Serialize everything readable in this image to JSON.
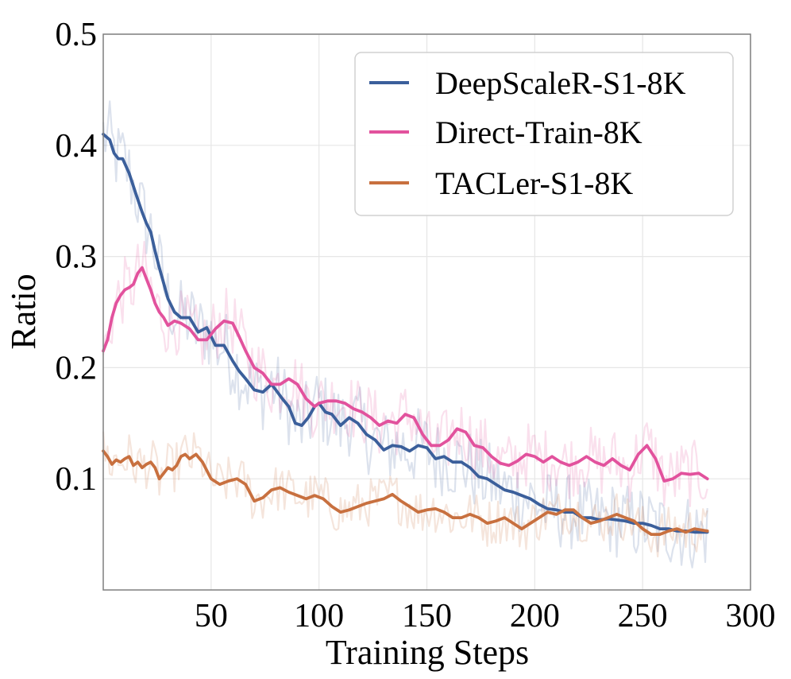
{
  "chart_data": {
    "type": "line",
    "title": "",
    "xlabel": "Training Steps",
    "ylabel": "Ratio",
    "xlim": [
      0,
      300
    ],
    "ylim": [
      0.0,
      0.5
    ],
    "xticks": [
      50,
      100,
      150,
      200,
      250,
      300
    ],
    "xtick_labels": [
      "50",
      "100",
      "150",
      "200",
      "250",
      "300"
    ],
    "yticks": [
      0.1,
      0.2,
      0.3,
      0.4,
      0.5
    ],
    "ytick_labels": [
      "0.1",
      "0.2",
      "0.3",
      "0.4",
      "0.5"
    ],
    "grid": true,
    "legend_position": "top-right",
    "series": [
      {
        "name": "DeepScaleR-S1-8K",
        "color": "#3b5f9b",
        "x": [
          0,
          3,
          5,
          7,
          9,
          12,
          15,
          18,
          20,
          22,
          24,
          26,
          28,
          30,
          33,
          36,
          40,
          44,
          48,
          52,
          56,
          60,
          63,
          66,
          70,
          74,
          78,
          80,
          83,
          86,
          89,
          92,
          95,
          98,
          100,
          103,
          106,
          110,
          114,
          118,
          122,
          126,
          130,
          134,
          138,
          142,
          146,
          150,
          154,
          158,
          162,
          166,
          170,
          174,
          178,
          182,
          186,
          190,
          194,
          198,
          202,
          206,
          210,
          214,
          218,
          222,
          226,
          230,
          234,
          238,
          242,
          246,
          250,
          254,
          258,
          262,
          266,
          270,
          274,
          278,
          280
        ],
        "values": [
          0.41,
          0.405,
          0.393,
          0.388,
          0.388,
          0.375,
          0.357,
          0.34,
          0.33,
          0.322,
          0.305,
          0.29,
          0.276,
          0.262,
          0.25,
          0.245,
          0.245,
          0.232,
          0.236,
          0.22,
          0.22,
          0.206,
          0.197,
          0.19,
          0.18,
          0.178,
          0.185,
          0.18,
          0.172,
          0.165,
          0.15,
          0.148,
          0.155,
          0.165,
          0.168,
          0.16,
          0.158,
          0.148,
          0.155,
          0.15,
          0.14,
          0.135,
          0.126,
          0.13,
          0.129,
          0.125,
          0.13,
          0.128,
          0.118,
          0.12,
          0.115,
          0.115,
          0.11,
          0.102,
          0.1,
          0.095,
          0.09,
          0.088,
          0.085,
          0.082,
          0.077,
          0.073,
          0.072,
          0.07,
          0.07,
          0.065,
          0.065,
          0.063,
          0.064,
          0.063,
          0.062,
          0.06,
          0.06,
          0.058,
          0.055,
          0.055,
          0.053,
          0.053,
          0.052,
          0.052,
          0.052
        ]
      },
      {
        "name": "Direct-Train-8K",
        "color": "#e2529d",
        "x": [
          0,
          2,
          4,
          6,
          8,
          10,
          12,
          14,
          16,
          18,
          20,
          22,
          24,
          26,
          28,
          30,
          33,
          36,
          40,
          44,
          48,
          52,
          56,
          60,
          63,
          66,
          70,
          74,
          78,
          82,
          86,
          90,
          94,
          98,
          100,
          104,
          108,
          112,
          116,
          120,
          124,
          128,
          132,
          136,
          140,
          144,
          148,
          152,
          156,
          160,
          164,
          168,
          172,
          176,
          180,
          184,
          188,
          192,
          196,
          200,
          204,
          208,
          212,
          216,
          220,
          224,
          228,
          232,
          236,
          240,
          244,
          248,
          252,
          256,
          260,
          264,
          268,
          272,
          276,
          280
        ],
        "values": [
          0.215,
          0.225,
          0.245,
          0.258,
          0.265,
          0.27,
          0.272,
          0.275,
          0.285,
          0.29,
          0.28,
          0.27,
          0.258,
          0.25,
          0.245,
          0.238,
          0.242,
          0.24,
          0.235,
          0.225,
          0.225,
          0.235,
          0.242,
          0.24,
          0.228,
          0.215,
          0.2,
          0.195,
          0.185,
          0.185,
          0.19,
          0.185,
          0.172,
          0.165,
          0.168,
          0.17,
          0.17,
          0.168,
          0.163,
          0.16,
          0.155,
          0.148,
          0.152,
          0.15,
          0.158,
          0.155,
          0.14,
          0.13,
          0.13,
          0.135,
          0.145,
          0.142,
          0.13,
          0.128,
          0.12,
          0.114,
          0.112,
          0.116,
          0.122,
          0.12,
          0.115,
          0.12,
          0.115,
          0.112,
          0.115,
          0.12,
          0.115,
          0.112,
          0.118,
          0.112,
          0.108,
          0.122,
          0.13,
          0.118,
          0.098,
          0.1,
          0.105,
          0.104,
          0.105,
          0.1
        ]
      },
      {
        "name": "TACLer-S1-8K",
        "color": "#c8703f",
        "x": [
          0,
          2,
          4,
          6,
          8,
          10,
          12,
          14,
          16,
          18,
          20,
          22,
          24,
          26,
          28,
          30,
          32,
          34,
          36,
          38,
          40,
          43,
          46,
          50,
          54,
          58,
          62,
          66,
          70,
          74,
          78,
          82,
          86,
          90,
          94,
          98,
          102,
          106,
          110,
          114,
          118,
          122,
          126,
          130,
          134,
          138,
          142,
          146,
          150,
          154,
          158,
          162,
          166,
          170,
          174,
          178,
          182,
          186,
          190,
          194,
          198,
          202,
          206,
          210,
          214,
          218,
          222,
          226,
          230,
          234,
          238,
          242,
          246,
          250,
          254,
          258,
          262,
          266,
          270,
          274,
          280
        ],
        "values": [
          0.125,
          0.12,
          0.113,
          0.117,
          0.115,
          0.118,
          0.12,
          0.112,
          0.115,
          0.11,
          0.113,
          0.115,
          0.11,
          0.1,
          0.105,
          0.11,
          0.108,
          0.112,
          0.12,
          0.122,
          0.118,
          0.122,
          0.115,
          0.1,
          0.095,
          0.098,
          0.1,
          0.095,
          0.08,
          0.083,
          0.09,
          0.092,
          0.088,
          0.085,
          0.082,
          0.085,
          0.082,
          0.075,
          0.07,
          0.072,
          0.075,
          0.078,
          0.08,
          0.082,
          0.086,
          0.08,
          0.075,
          0.07,
          0.072,
          0.073,
          0.07,
          0.065,
          0.065,
          0.068,
          0.065,
          0.06,
          0.062,
          0.065,
          0.06,
          0.055,
          0.06,
          0.065,
          0.07,
          0.068,
          0.072,
          0.072,
          0.065,
          0.06,
          0.062,
          0.065,
          0.068,
          0.065,
          0.062,
          0.055,
          0.05,
          0.05,
          0.053,
          0.055,
          0.052,
          0.055,
          0.053
        ]
      }
    ]
  }
}
